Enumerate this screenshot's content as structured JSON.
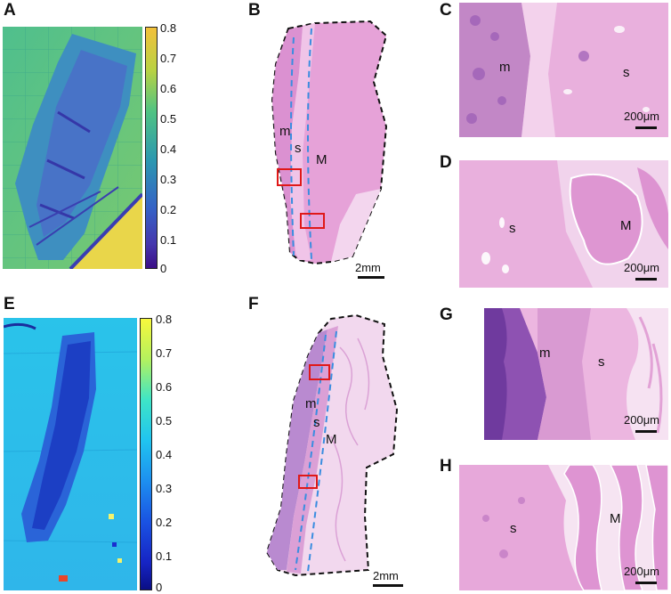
{
  "panel_labels": {
    "A": "A",
    "B": "B",
    "C": "C",
    "D": "D",
    "E": "E",
    "F": "F",
    "G": "G",
    "H": "H"
  },
  "colorbar_top": {
    "ticks": [
      "0.8",
      "0.7",
      "0.6",
      "0.5",
      "0.4",
      "0.3",
      "0.2",
      "0.1",
      "0"
    ],
    "colormap": [
      "#e4d846",
      "#8fd35a",
      "#3ebd86",
      "#2a8fb3",
      "#3360c4",
      "#4a37b0",
      "#3d0f8a"
    ]
  },
  "colorbar_bottom": {
    "ticks": [
      "0.8",
      "0.7",
      "0.6",
      "0.5",
      "0.4",
      "0.3",
      "0.2",
      "0.1",
      "0"
    ],
    "colormap": [
      "#f6f73a",
      "#6ef0a6",
      "#2ad8e6",
      "#1fa7f0",
      "#1a5fe6",
      "#1a2fd0",
      "#0b0f8a"
    ]
  },
  "tissue_labels": {
    "B_m": "m",
    "B_s": "s",
    "B_M": "M",
    "C_m": "m",
    "C_s": "s",
    "D_s": "s",
    "D_M": "M",
    "F_m": "m",
    "F_s": "s",
    "F_M": "M",
    "G_m": "m",
    "G_s": "s",
    "H_s": "s",
    "H_M": "M"
  },
  "scale_bars": {
    "B": "2mm",
    "C": "200μm",
    "D": "200μm",
    "F": "2mm",
    "G": "200μm",
    "H": "200μm"
  },
  "colors": {
    "he_pink": "#e8a3d6",
    "he_light": "#f3d4ec",
    "he_purple": "#9a5cb5",
    "roi_box": "#e01818",
    "boundary_dash": "#3a8de0"
  }
}
